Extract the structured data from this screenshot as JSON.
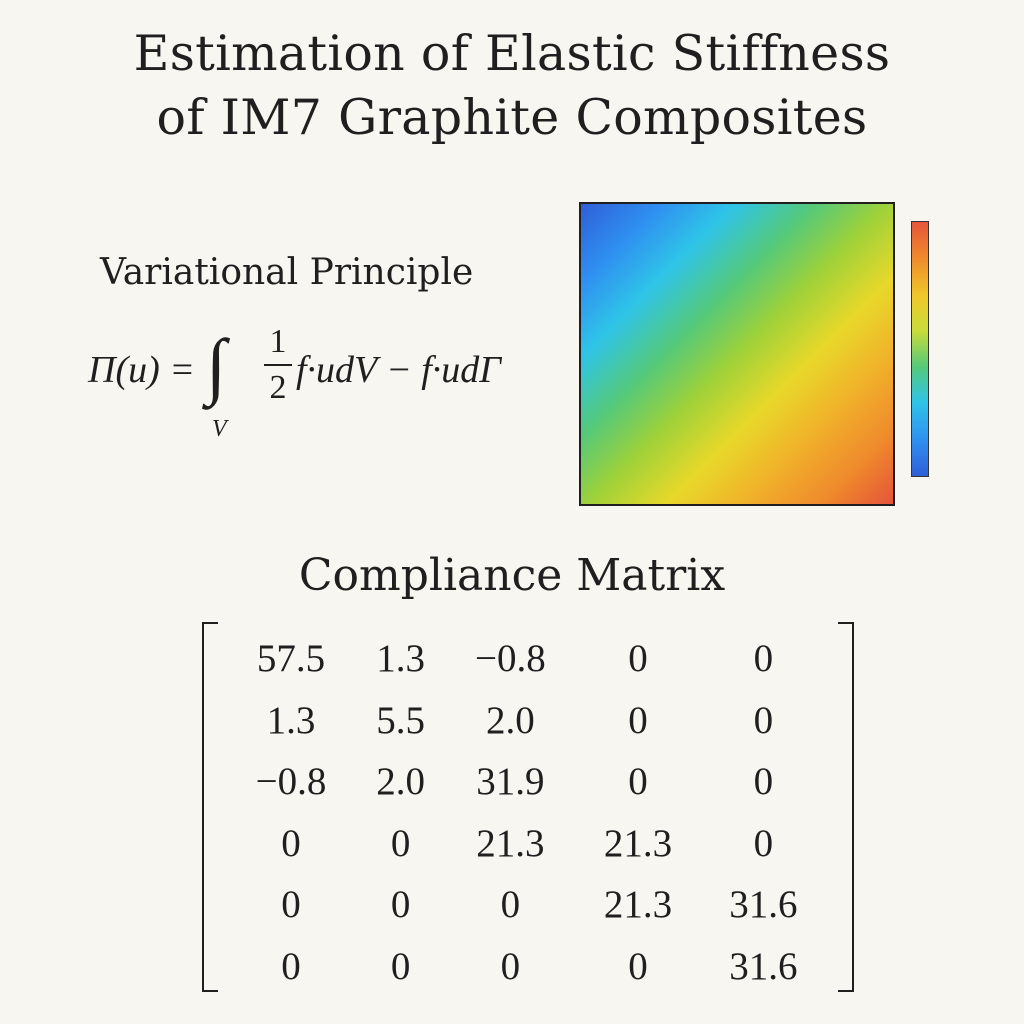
{
  "title": {
    "line1": "Estimation of Elastic Stiffness",
    "line2": "of IM7 Graphite Composites"
  },
  "variational": {
    "heading": "Variational Principle",
    "equation": {
      "lhs": "Π(u) =",
      "integral": "∫",
      "subscript": "V",
      "fraction_num": "1",
      "fraction_den": "2",
      "rhs": "f·udV − f·udΓ"
    }
  },
  "contour_plot": {
    "colormap": [
      "#2f5fd8",
      "#2f8ff0",
      "#2fc4e8",
      "#54c97a",
      "#9ed13a",
      "#e8d82a",
      "#f0b32a",
      "#ef8a2c",
      "#e5543a"
    ],
    "gradient_direction": "top-left to bottom-right",
    "colorbar_colors": [
      "#e5543a",
      "#ef8a2c",
      "#f0c82a",
      "#c8dc3a",
      "#54c97a",
      "#2fc4e8",
      "#2f8ff0",
      "#2f5fd8"
    ]
  },
  "compliance": {
    "heading": "Compliance Matrix",
    "rows": [
      [
        "57.5",
        "1.3",
        "−0.8",
        "0",
        "0"
      ],
      [
        "1.3",
        "5.5",
        "2.0",
        "0",
        "0"
      ],
      [
        "−0.8",
        "2.0",
        "31.9",
        "0",
        "0"
      ],
      [
        "0",
        "0",
        "21.3",
        "21.3",
        "0"
      ],
      [
        "0",
        "0",
        "0",
        "21.3",
        "31.6"
      ],
      [
        "0",
        "0",
        "0",
        "0",
        "31.6"
      ]
    ]
  }
}
